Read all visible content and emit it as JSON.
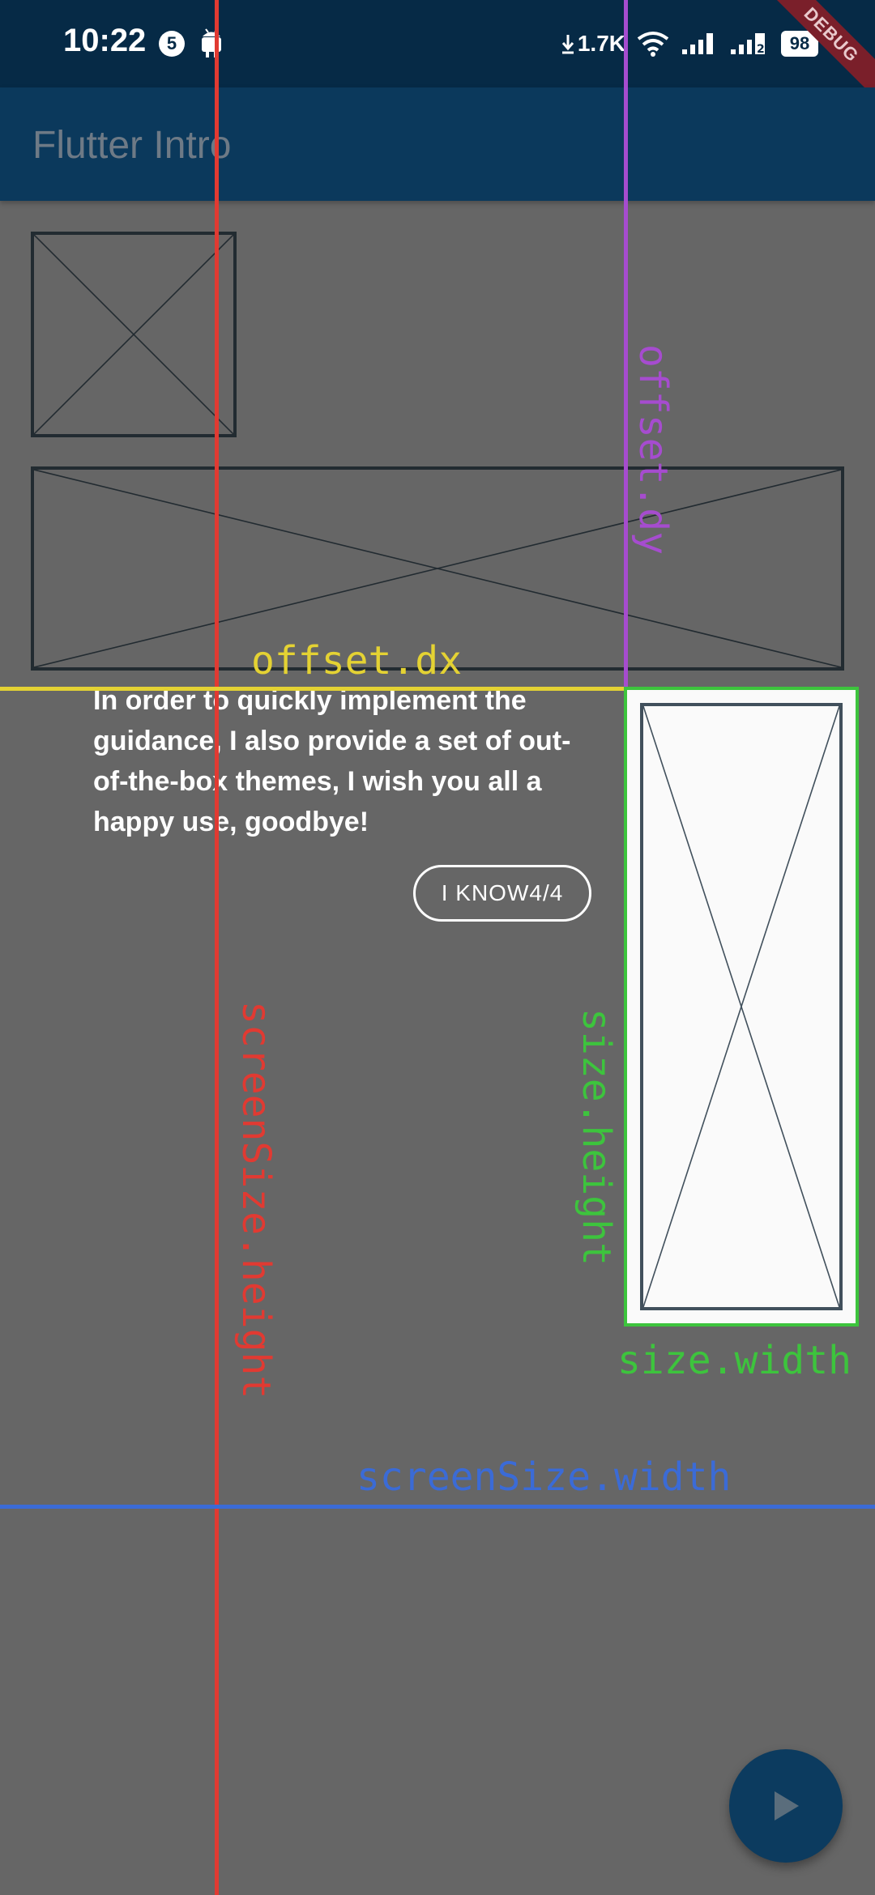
{
  "status_bar": {
    "time": "10:22",
    "notification_count": "5",
    "net_speed": "1.7K",
    "battery": "98",
    "debug_banner": "DEBUG"
  },
  "app_bar": {
    "title": "Flutter Intro"
  },
  "guide": {
    "message": "In order to quickly implement the guidance, I also provide a set of out-of-the-box themes, I wish you all a happy use, goodbye!",
    "button_label": "I KNOW4/4"
  },
  "annotations": {
    "offset_dx": "offset.dx",
    "offset_dy": "offset.dy",
    "size_width": "size.width",
    "size_height": "size.height",
    "screen_width": "screenSize.width",
    "screen_height": "screenSize.height"
  },
  "colors": {
    "screen_height_line": "#e13a32",
    "offset_dy_line": "#a64ccf",
    "offset_dx_line": "#e4d233",
    "size_box": "#3dc43d",
    "screen_width_line": "#3b6bd6",
    "app_bar": "#0b395c",
    "overlay": "#666666"
  },
  "icons": {
    "fab": "play-icon"
  }
}
